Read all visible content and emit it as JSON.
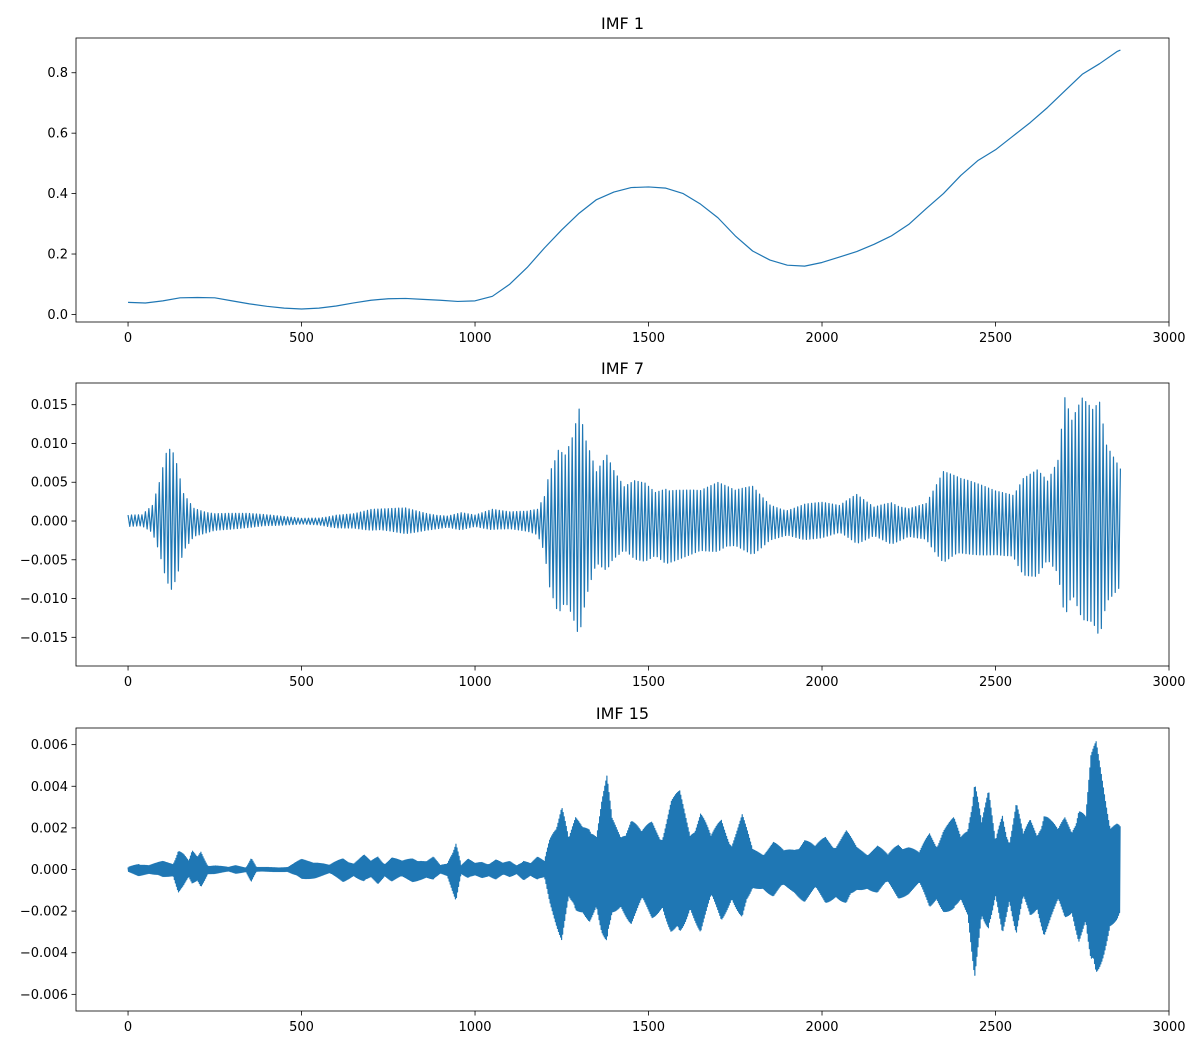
{
  "chart_data": [
    {
      "type": "line",
      "title": "IMF 1",
      "xlabel": "",
      "ylabel": "",
      "xlim": [
        -150,
        3000
      ],
      "ylim": [
        -0.025,
        0.915
      ],
      "xticks": [
        0,
        500,
        1000,
        1500,
        2000,
        2500,
        3000
      ],
      "xtick_labels": [
        "0",
        "500",
        "1000",
        "1500",
        "2000",
        "2500",
        "3000"
      ],
      "yticks": [
        0.0,
        0.2,
        0.4,
        0.6,
        0.8
      ],
      "ytick_labels": [
        "0.0",
        "0.2",
        "0.4",
        "0.6",
        "0.8"
      ],
      "grid": false,
      "series": [
        {
          "style": "smooth",
          "color": "#1f77b4",
          "x": [
            0,
            50,
            100,
            150,
            200,
            250,
            300,
            350,
            400,
            450,
            500,
            550,
            600,
            650,
            700,
            750,
            800,
            850,
            900,
            950,
            1000,
            1050,
            1100,
            1150,
            1200,
            1250,
            1300,
            1350,
            1400,
            1450,
            1500,
            1550,
            1600,
            1650,
            1700,
            1750,
            1800,
            1850,
            1900,
            1950,
            2000,
            2050,
            2100,
            2150,
            2200,
            2250,
            2300,
            2350,
            2400,
            2450,
            2500,
            2550,
            2600,
            2650,
            2700,
            2750,
            2800,
            2850,
            2860
          ],
          "y": [
            0.04,
            0.038,
            0.045,
            0.055,
            0.056,
            0.055,
            0.045,
            0.035,
            0.027,
            0.021,
            0.018,
            0.021,
            0.028,
            0.038,
            0.047,
            0.052,
            0.053,
            0.05,
            0.047,
            0.043,
            0.045,
            0.06,
            0.1,
            0.155,
            0.22,
            0.28,
            0.335,
            0.38,
            0.405,
            0.42,
            0.422,
            0.418,
            0.4,
            0.365,
            0.32,
            0.26,
            0.21,
            0.18,
            0.163,
            0.16,
            0.172,
            0.19,
            0.208,
            0.232,
            0.26,
            0.298,
            0.35,
            0.4,
            0.46,
            0.51,
            0.545,
            0.59,
            0.635,
            0.685,
            0.74,
            0.795,
            0.83,
            0.87,
            0.875
          ]
        }
      ]
    },
    {
      "type": "line",
      "title": "IMF 7",
      "xlabel": "",
      "ylabel": "",
      "xlim": [
        -150,
        3000
      ],
      "ylim": [
        -0.0187,
        0.0178
      ],
      "xticks": [
        0,
        500,
        1000,
        1500,
        2000,
        2500,
        3000
      ],
      "xtick_labels": [
        "0",
        "500",
        "1000",
        "1500",
        "2000",
        "2500",
        "3000"
      ],
      "yticks": [
        -0.015,
        -0.01,
        -0.005,
        0.0,
        0.005,
        0.01,
        0.015
      ],
      "ytick_labels": [
        "−0.015",
        "−0.010",
        "−0.005",
        "0.000",
        "0.005",
        "0.010",
        "0.015"
      ],
      "grid": false,
      "series": [
        {
          "style": "oscillation",
          "color": "#1f77b4",
          "x_start": 0,
          "x_end": 2860,
          "period": 10,
          "envelope_x": [
            0,
            40,
            70,
            90,
            110,
            125,
            140,
            160,
            190,
            250,
            350,
            450,
            500,
            550,
            600,
            650,
            700,
            750,
            800,
            860,
            920,
            960,
            1000,
            1050,
            1100,
            1150,
            1180,
            1200,
            1215,
            1240,
            1260,
            1280,
            1300,
            1320,
            1350,
            1380,
            1400,
            1430,
            1460,
            1490,
            1520,
            1550,
            1600,
            1650,
            1700,
            1750,
            1800,
            1850,
            1900,
            1950,
            2000,
            2050,
            2100,
            2150,
            2200,
            2250,
            2300,
            2350,
            2400,
            2450,
            2500,
            2550,
            2580,
            2620,
            2650,
            2680,
            2700,
            2720,
            2750,
            2780,
            2800,
            2820,
            2860
          ],
          "envelope_a": [
            0.0008,
            0.0008,
            0.002,
            0.005,
            0.009,
            0.01,
            0.008,
            0.004,
            0.002,
            0.0012,
            0.001,
            0.0006,
            0.0004,
            0.0005,
            0.0009,
            0.001,
            0.0015,
            0.0016,
            0.0018,
            0.0012,
            0.0008,
            0.0012,
            0.0008,
            0.0015,
            0.0012,
            0.0014,
            0.0018,
            0.004,
            0.0085,
            0.012,
            0.0105,
            0.0125,
            0.016,
            0.011,
            0.0065,
            0.0085,
            0.0065,
            0.0045,
            0.0055,
            0.0055,
            0.0045,
            0.0055,
            0.0048,
            0.0042,
            0.005,
            0.004,
            0.0048,
            0.0025,
            0.0018,
            0.0025,
            0.0025,
            0.002,
            0.0035,
            0.002,
            0.003,
            0.002,
            0.0025,
            0.0065,
            0.0055,
            0.005,
            0.0045,
            0.0045,
            0.007,
            0.0075,
            0.0055,
            0.008,
            0.016,
            0.013,
            0.016,
            0.015,
            0.0165,
            0.011,
            0.0085
          ]
        }
      ]
    },
    {
      "type": "line",
      "title": "IMF 15",
      "xlabel": "",
      "ylabel": "",
      "xlim": [
        -150,
        3000
      ],
      "ylim": [
        -0.0068,
        0.0068
      ],
      "xticks": [
        0,
        500,
        1000,
        1500,
        2000,
        2500,
        3000
      ],
      "xtick_labels": [
        "0",
        "500",
        "1000",
        "1500",
        "2000",
        "2500",
        "3000"
      ],
      "yticks": [
        -0.006,
        -0.004,
        -0.002,
        0.0,
        0.002,
        0.004,
        0.006
      ],
      "ytick_labels": [
        "−0.006",
        "−0.004",
        "−0.002",
        "0.000",
        "0.002",
        "0.004",
        "0.006"
      ],
      "grid": false,
      "series": [
        {
          "style": "oscillation",
          "color": "#1f77b4",
          "x_start": 0,
          "x_end": 2860,
          "period": 3,
          "envelope_x": [
            0,
            30,
            60,
            100,
            130,
            145,
            160,
            175,
            185,
            200,
            210,
            230,
            250,
            290,
            310,
            340,
            355,
            370,
            400,
            430,
            460,
            500,
            540,
            580,
            620,
            650,
            680,
            700,
            720,
            740,
            760,
            790,
            820,
            860,
            880,
            900,
            920,
            945,
            960,
            980,
            1000,
            1020,
            1040,
            1060,
            1080,
            1100,
            1120,
            1140,
            1160,
            1180,
            1200,
            1215,
            1235,
            1250,
            1270,
            1290,
            1310,
            1330,
            1350,
            1365,
            1380,
            1395,
            1420,
            1450,
            1480,
            1510,
            1540,
            1565,
            1590,
            1620,
            1650,
            1680,
            1710,
            1740,
            1770,
            1800,
            1830,
            1860,
            1890,
            1920,
            1950,
            1980,
            2010,
            2040,
            2070,
            2100,
            2130,
            2160,
            2190,
            2220,
            2250,
            2280,
            2310,
            2330,
            2350,
            2380,
            2400,
            2420,
            2440,
            2460,
            2480,
            2500,
            2520,
            2540,
            2560,
            2580,
            2600,
            2620,
            2640,
            2660,
            2680,
            2700,
            2720,
            2740,
            2760,
            2775,
            2790,
            2810,
            2830,
            2850,
            2860
          ],
          "envelope_a": [
            0.0001,
            0.0003,
            0.0002,
            0.0004,
            0.0003,
            0.0011,
            0.0008,
            0.0004,
            0.0009,
            0.0006,
            0.0009,
            0.0002,
            0.0002,
            0.0001,
            0.0002,
            0.0001,
            0.0006,
            0.0001,
            0.0001,
            0.0001,
            0.0001,
            0.0005,
            0.0004,
            0.0002,
            0.0006,
            0.0003,
            0.0007,
            0.0004,
            0.0007,
            0.0003,
            0.0006,
            0.0004,
            0.0006,
            0.0004,
            0.0006,
            0.0002,
            0.0003,
            0.0015,
            0.0002,
            0.0005,
            0.0003,
            0.0004,
            0.0003,
            0.0005,
            0.0003,
            0.0004,
            0.0002,
            0.0005,
            0.0003,
            0.0006,
            0.0004,
            0.0016,
            0.0027,
            0.0035,
            0.0015,
            0.0025,
            0.0022,
            0.0025,
            0.0018,
            0.0034,
            0.0045,
            0.0025,
            0.0018,
            0.0027,
            0.0018,
            0.0025,
            0.0018,
            0.0034,
            0.0038,
            0.0019,
            0.0031,
            0.0016,
            0.0026,
            0.0014,
            0.0027,
            0.001,
            0.0009,
            0.0014,
            0.0009,
            0.0011,
            0.0016,
            0.0011,
            0.0017,
            0.0013,
            0.0019,
            0.0011,
            0.0009,
            0.0012,
            0.0007,
            0.0014,
            0.0012,
            0.0008,
            0.0019,
            0.0014,
            0.0021,
            0.0025,
            0.0016,
            0.0022,
            0.0052,
            0.0024,
            0.0038,
            0.0014,
            0.0031,
            0.0015,
            0.0034,
            0.0017,
            0.0025,
            0.0019,
            0.0032,
            0.0025,
            0.0019,
            0.0026,
            0.0021,
            0.0035,
            0.0027,
            0.0055,
            0.0062,
            0.0045,
            0.0027,
            0.0025,
            0.0022,
            0.0008
          ]
        }
      ]
    }
  ]
}
